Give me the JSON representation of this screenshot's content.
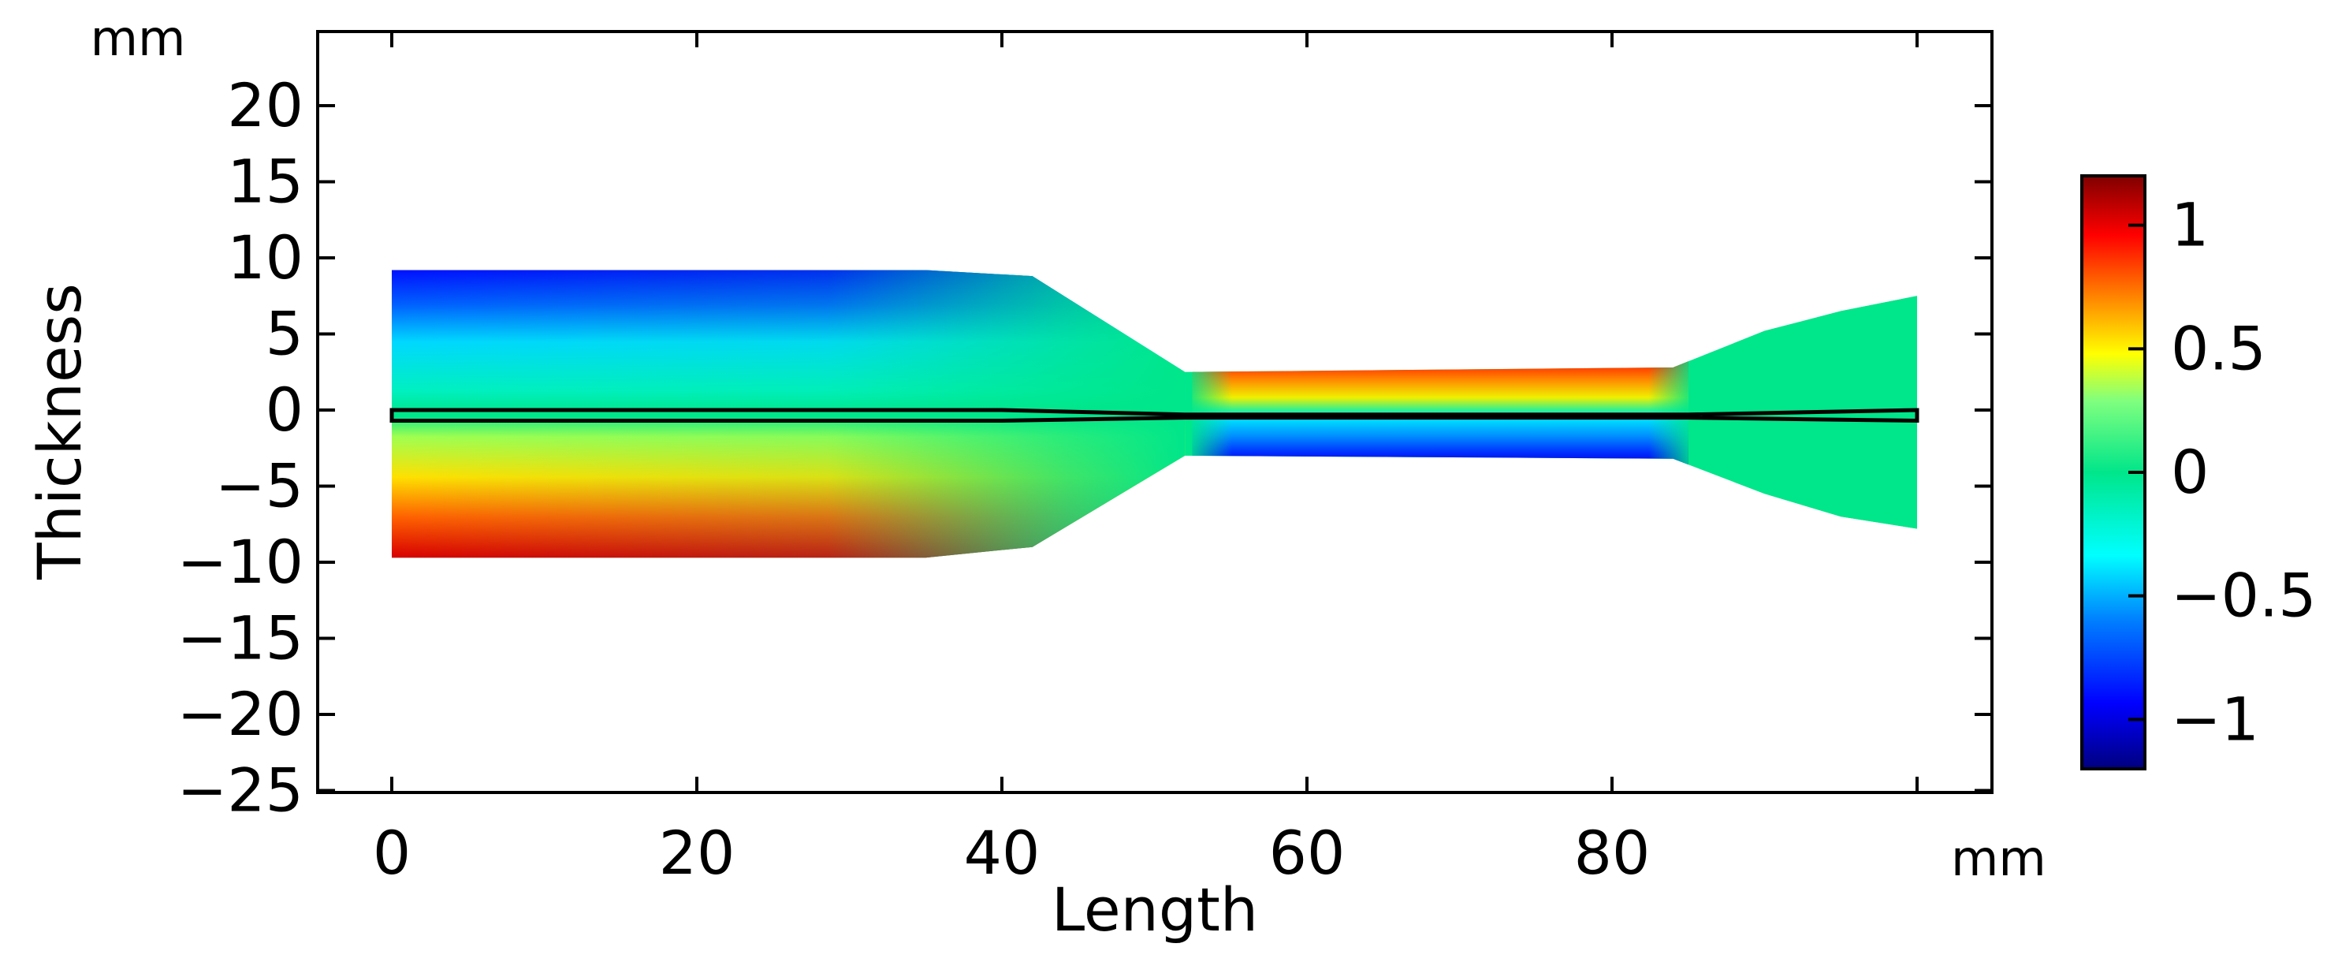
{
  "chart_data": {
    "type": "heatmap",
    "xlabel": "Length",
    "ylabel": "Thickness",
    "x_unit": "mm",
    "y_unit": "mm",
    "xlim": [
      -5,
      105
    ],
    "ylim": [
      -25,
      25
    ],
    "x_ticks": [
      0,
      20,
      40,
      60,
      80
    ],
    "x_tick_labels": [
      "0",
      "20",
      "40",
      "60",
      "80"
    ],
    "y_ticks": [
      20,
      15,
      10,
      5,
      0,
      -5,
      -10,
      -15,
      -20,
      -25
    ],
    "y_tick_labels": [
      "20",
      "15",
      "10",
      "5",
      "0",
      "−5",
      "−10",
      "−15",
      "−20",
      "−25"
    ],
    "grid": false,
    "colormap": "jet",
    "colorbar": {
      "range": [
        -1.2,
        1.2
      ],
      "ticks": [
        1,
        0.5,
        0,
        -0.5,
        -1
      ],
      "tick_labels": [
        "1",
        "0.5",
        "0",
        "−0.5",
        "−1"
      ],
      "colors": [
        "#00007f",
        "#0000ff",
        "#007fff",
        "#00ffff",
        "#00e68a",
        "#7fff7f",
        "#ffff00",
        "#ff7f00",
        "#ff0000",
        "#7f0000"
      ]
    },
    "domain_outline": {
      "x": [
        0,
        35,
        42,
        52,
        84,
        90,
        95,
        100
      ],
      "upper_thickness": [
        9.2,
        9.2,
        8.8,
        2.5,
        2.8,
        5.2,
        6.5,
        7.5
      ],
      "lower_thickness": [
        -9.7,
        -9.7,
        -9.0,
        -3.0,
        -3.2,
        -5.5,
        -7.0,
        -7.8
      ]
    },
    "mid_strip": {
      "x": [
        0,
        40,
        52,
        85,
        100
      ],
      "upper": [
        0.0,
        0.0,
        -0.3,
        -0.3,
        0.0
      ],
      "lower": [
        -0.7,
        -0.7,
        -0.5,
        -0.5,
        -0.7
      ]
    },
    "field_description": "antisymmetric bending field: left section blue on top / red on bottom, right waist section red on top / blue on bottom, taper regions near 0"
  }
}
